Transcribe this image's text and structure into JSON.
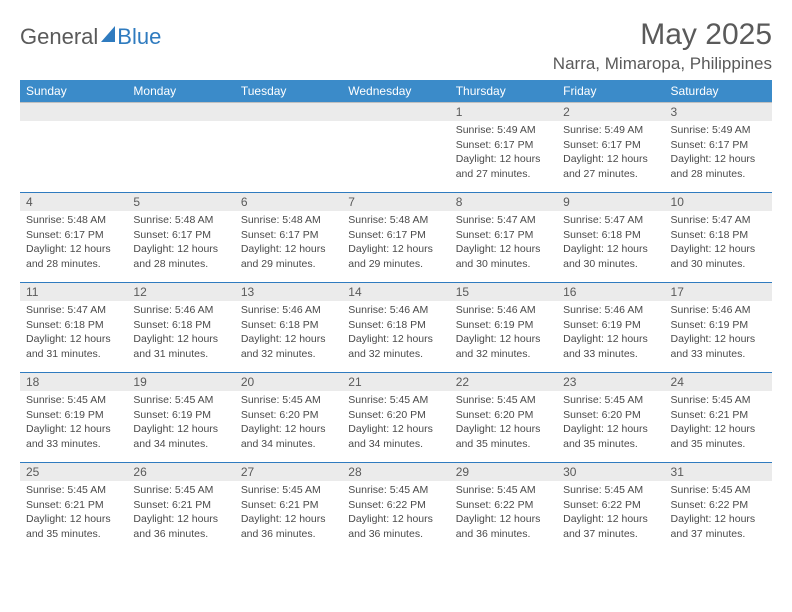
{
  "brand": {
    "general": "General",
    "blue": "Blue"
  },
  "title": "May 2025",
  "location": "Narra, Mimaropa, Philippines",
  "weekdays": [
    "Sunday",
    "Monday",
    "Tuesday",
    "Wednesday",
    "Thursday",
    "Friday",
    "Saturday"
  ],
  "style": {
    "header_bg": "#3b8bc9",
    "header_fg": "#ffffff",
    "daynum_bg": "#ebebeb",
    "border_color": "#2f7bbf",
    "text_color": "#4a4a4a",
    "cell_font_size": 10.5,
    "daynum_font_size": 12,
    "header_font_size": 12,
    "title_font_size": 30,
    "location_font_size": 17
  },
  "weeks": [
    [
      null,
      null,
      null,
      null,
      {
        "n": "1",
        "sunrise": "5:49 AM",
        "sunset": "6:17 PM",
        "daylight": "12 hours and 27 minutes."
      },
      {
        "n": "2",
        "sunrise": "5:49 AM",
        "sunset": "6:17 PM",
        "daylight": "12 hours and 27 minutes."
      },
      {
        "n": "3",
        "sunrise": "5:49 AM",
        "sunset": "6:17 PM",
        "daylight": "12 hours and 28 minutes."
      }
    ],
    [
      {
        "n": "4",
        "sunrise": "5:48 AM",
        "sunset": "6:17 PM",
        "daylight": "12 hours and 28 minutes."
      },
      {
        "n": "5",
        "sunrise": "5:48 AM",
        "sunset": "6:17 PM",
        "daylight": "12 hours and 28 minutes."
      },
      {
        "n": "6",
        "sunrise": "5:48 AM",
        "sunset": "6:17 PM",
        "daylight": "12 hours and 29 minutes."
      },
      {
        "n": "7",
        "sunrise": "5:48 AM",
        "sunset": "6:17 PM",
        "daylight": "12 hours and 29 minutes."
      },
      {
        "n": "8",
        "sunrise": "5:47 AM",
        "sunset": "6:17 PM",
        "daylight": "12 hours and 30 minutes."
      },
      {
        "n": "9",
        "sunrise": "5:47 AM",
        "sunset": "6:18 PM",
        "daylight": "12 hours and 30 minutes."
      },
      {
        "n": "10",
        "sunrise": "5:47 AM",
        "sunset": "6:18 PM",
        "daylight": "12 hours and 30 minutes."
      }
    ],
    [
      {
        "n": "11",
        "sunrise": "5:47 AM",
        "sunset": "6:18 PM",
        "daylight": "12 hours and 31 minutes."
      },
      {
        "n": "12",
        "sunrise": "5:46 AM",
        "sunset": "6:18 PM",
        "daylight": "12 hours and 31 minutes."
      },
      {
        "n": "13",
        "sunrise": "5:46 AM",
        "sunset": "6:18 PM",
        "daylight": "12 hours and 32 minutes."
      },
      {
        "n": "14",
        "sunrise": "5:46 AM",
        "sunset": "6:18 PM",
        "daylight": "12 hours and 32 minutes."
      },
      {
        "n": "15",
        "sunrise": "5:46 AM",
        "sunset": "6:19 PM",
        "daylight": "12 hours and 32 minutes."
      },
      {
        "n": "16",
        "sunrise": "5:46 AM",
        "sunset": "6:19 PM",
        "daylight": "12 hours and 33 minutes."
      },
      {
        "n": "17",
        "sunrise": "5:46 AM",
        "sunset": "6:19 PM",
        "daylight": "12 hours and 33 minutes."
      }
    ],
    [
      {
        "n": "18",
        "sunrise": "5:45 AM",
        "sunset": "6:19 PM",
        "daylight": "12 hours and 33 minutes."
      },
      {
        "n": "19",
        "sunrise": "5:45 AM",
        "sunset": "6:19 PM",
        "daylight": "12 hours and 34 minutes."
      },
      {
        "n": "20",
        "sunrise": "5:45 AM",
        "sunset": "6:20 PM",
        "daylight": "12 hours and 34 minutes."
      },
      {
        "n": "21",
        "sunrise": "5:45 AM",
        "sunset": "6:20 PM",
        "daylight": "12 hours and 34 minutes."
      },
      {
        "n": "22",
        "sunrise": "5:45 AM",
        "sunset": "6:20 PM",
        "daylight": "12 hours and 35 minutes."
      },
      {
        "n": "23",
        "sunrise": "5:45 AM",
        "sunset": "6:20 PM",
        "daylight": "12 hours and 35 minutes."
      },
      {
        "n": "24",
        "sunrise": "5:45 AM",
        "sunset": "6:21 PM",
        "daylight": "12 hours and 35 minutes."
      }
    ],
    [
      {
        "n": "25",
        "sunrise": "5:45 AM",
        "sunset": "6:21 PM",
        "daylight": "12 hours and 35 minutes."
      },
      {
        "n": "26",
        "sunrise": "5:45 AM",
        "sunset": "6:21 PM",
        "daylight": "12 hours and 36 minutes."
      },
      {
        "n": "27",
        "sunrise": "5:45 AM",
        "sunset": "6:21 PM",
        "daylight": "12 hours and 36 minutes."
      },
      {
        "n": "28",
        "sunrise": "5:45 AM",
        "sunset": "6:22 PM",
        "daylight": "12 hours and 36 minutes."
      },
      {
        "n": "29",
        "sunrise": "5:45 AM",
        "sunset": "6:22 PM",
        "daylight": "12 hours and 36 minutes."
      },
      {
        "n": "30",
        "sunrise": "5:45 AM",
        "sunset": "6:22 PM",
        "daylight": "12 hours and 37 minutes."
      },
      {
        "n": "31",
        "sunrise": "5:45 AM",
        "sunset": "6:22 PM",
        "daylight": "12 hours and 37 minutes."
      }
    ]
  ],
  "labels": {
    "sunrise": "Sunrise:",
    "sunset": "Sunset:",
    "daylight": "Daylight:"
  }
}
